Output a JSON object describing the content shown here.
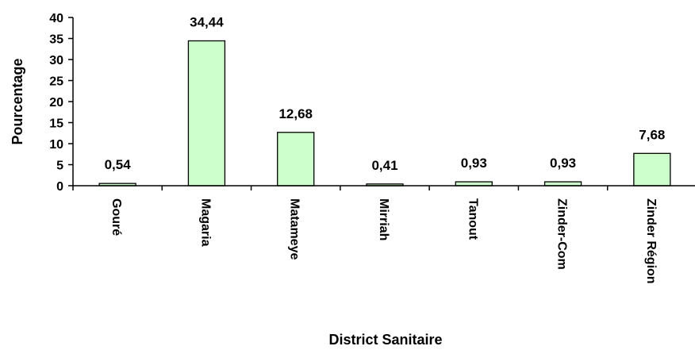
{
  "chart_data": {
    "type": "bar",
    "title": "",
    "xlabel": "District Sanitaire",
    "ylabel": "Pourcentage",
    "categories": [
      "Gouré",
      "Magaria",
      "Matameye",
      "Mirriah",
      "Tanout",
      "Zinder-Com",
      "Zinder Région"
    ],
    "values": [
      0.54,
      34.44,
      12.68,
      0.41,
      0.93,
      0.93,
      7.68
    ],
    "value_labels": [
      "0,54",
      "34,44",
      "12,68",
      "0,41",
      "0,93",
      "0,93",
      "7,68"
    ],
    "ylim": [
      0,
      40
    ],
    "yticks": [
      0,
      5,
      10,
      15,
      20,
      25,
      30,
      35,
      40
    ],
    "grid": false,
    "legend": "none",
    "bar_color": "#ccffcc",
    "bar_edge_color": "#000000"
  }
}
